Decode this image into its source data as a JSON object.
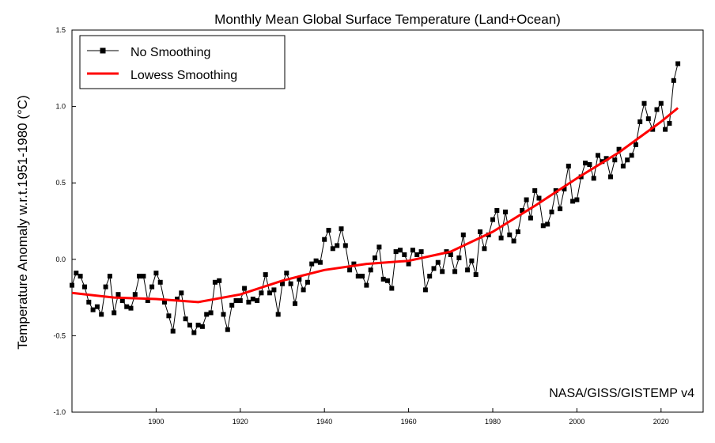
{
  "chart_data": {
    "type": "line",
    "title": "Monthly Mean Global Surface Temperature (Land+Ocean)",
    "ylabel": "Temperature Anomaly w.r.t.1951-1980 (°C)",
    "xlabel": "",
    "xlim": [
      1880,
      2030
    ],
    "ylim": [
      -1.0,
      1.5
    ],
    "x_ticks": [
      1900,
      1920,
      1940,
      1960,
      1980,
      2000,
      2020
    ],
    "x_tick_labels": [
      "1900",
      "1920",
      "1940",
      "1960",
      "1980",
      "2000",
      "2020"
    ],
    "y_ticks": [
      -1.0,
      -0.5,
      0.0,
      0.5,
      1.0,
      1.5
    ],
    "y_tick_labels": [
      "-1.0",
      "-0.5",
      "0.0",
      "0.5",
      "1.0",
      "1.5"
    ],
    "legend_position": "top-left",
    "annotation": "NASA/GISS/GISTEMP v4",
    "series": [
      {
        "name": "No Smoothing",
        "color": "#000000",
        "marker": "square",
        "x": [
          1880.0,
          1881.0,
          1882.0,
          1883.0,
          1884.0,
          1885.0,
          1886.0,
          1887.0,
          1888.0,
          1889.0,
          1890.0,
          1891.0,
          1892.0,
          1893.0,
          1894.0,
          1895.0,
          1896.0,
          1897.0,
          1898.0,
          1899.0,
          1900.0,
          1901.0,
          1902.0,
          1903.0,
          1904.0,
          1905.0,
          1906.0,
          1907.0,
          1908.0,
          1909.0,
          1910.0,
          1911.0,
          1912.0,
          1913.0,
          1914.0,
          1915.0,
          1916.0,
          1917.0,
          1918.0,
          1919.0,
          1920.0,
          1921.0,
          1922.0,
          1923.0,
          1924.0,
          1925.0,
          1926.0,
          1927.0,
          1928.0,
          1929.0,
          1930.0,
          1931.0,
          1932.0,
          1933.0,
          1934.0,
          1935.0,
          1936.0,
          1937.0,
          1938.0,
          1939.0,
          1940.0,
          1941.0,
          1942.0,
          1943.0,
          1944.0,
          1945.0,
          1946.0,
          1947.0,
          1948.0,
          1949.0,
          1950.0,
          1951.0,
          1952.0,
          1953.0,
          1954.0,
          1955.0,
          1956.0,
          1957.0,
          1958.0,
          1959.0,
          1960.0,
          1961.0,
          1962.0,
          1963.0,
          1964.0,
          1965.0,
          1966.0,
          1967.0,
          1968.0,
          1969.0,
          1970.0,
          1971.0,
          1972.0,
          1973.0,
          1974.0,
          1975.0,
          1976.0,
          1977.0,
          1978.0,
          1979.0,
          1980.0,
          1981.0,
          1982.0,
          1983.0,
          1984.0,
          1985.0,
          1986.0,
          1987.0,
          1988.0,
          1989.0,
          1990.0,
          1991.0,
          1992.0,
          1993.0,
          1994.0,
          1995.0,
          1996.0,
          1997.0,
          1998.0,
          1999.0,
          2000.0,
          2001.0,
          2002.0,
          2003.0,
          2004.0,
          2005.0,
          2006.0,
          2007.0,
          2008.0,
          2009.0,
          2010.0,
          2011.0,
          2012.0,
          2013.0,
          2014.0,
          2015.0,
          2016.0,
          2017.0,
          2018.0,
          2019.0,
          2020.0,
          2021.0,
          2022.0,
          2023.0,
          2024.0
        ],
        "values": [
          -0.17,
          -0.09,
          -0.11,
          -0.18,
          -0.28,
          -0.33,
          -0.31,
          -0.36,
          -0.18,
          -0.11,
          -0.35,
          -0.23,
          -0.27,
          -0.31,
          -0.32,
          -0.23,
          -0.11,
          -0.11,
          -0.27,
          -0.18,
          -0.09,
          -0.15,
          -0.28,
          -0.37,
          -0.47,
          -0.26,
          -0.22,
          -0.39,
          -0.43,
          -0.48,
          -0.43,
          -0.44,
          -0.36,
          -0.35,
          -0.15,
          -0.14,
          -0.36,
          -0.46,
          -0.3,
          -0.27,
          -0.27,
          -0.19,
          -0.28,
          -0.26,
          -0.27,
          -0.22,
          -0.1,
          -0.22,
          -0.2,
          -0.36,
          -0.16,
          -0.09,
          -0.16,
          -0.29,
          -0.13,
          -0.2,
          -0.15,
          -0.03,
          -0.01,
          -0.02,
          0.13,
          0.19,
          0.07,
          0.09,
          0.2,
          0.09,
          -0.07,
          -0.03,
          -0.11,
          -0.11,
          -0.17,
          -0.07,
          0.01,
          0.08,
          -0.13,
          -0.14,
          -0.19,
          0.05,
          0.06,
          0.03,
          -0.03,
          0.06,
          0.03,
          0.05,
          -0.2,
          -0.11,
          -0.06,
          -0.02,
          -0.08,
          0.05,
          0.03,
          -0.08,
          0.01,
          0.16,
          -0.07,
          -0.01,
          -0.1,
          0.18,
          0.07,
          0.16,
          0.26,
          0.32,
          0.14,
          0.31,
          0.16,
          0.12,
          0.18,
          0.32,
          0.39,
          0.27,
          0.45,
          0.4,
          0.22,
          0.23,
          0.31,
          0.45,
          0.33,
          0.46,
          0.61,
          0.38,
          0.39,
          0.54,
          0.63,
          0.62,
          0.53,
          0.68,
          0.64,
          0.66,
          0.54,
          0.65,
          0.72,
          0.61,
          0.65,
          0.68,
          0.75,
          0.9,
          1.02,
          0.92,
          0.85,
          0.98,
          1.02,
          0.85,
          0.89,
          1.17,
          1.28
        ]
      },
      {
        "name": "Lowess Smoothing",
        "color": "#ff0000",
        "x": [
          1880,
          1890,
          1900,
          1910,
          1920,
          1930,
          1940,
          1950,
          1960,
          1970,
          1980,
          1990,
          2000,
          2010,
          2020,
          2024
        ],
        "values": [
          -0.22,
          -0.25,
          -0.26,
          -0.28,
          -0.23,
          -0.14,
          -0.07,
          -0.03,
          -0.01,
          0.05,
          0.18,
          0.35,
          0.53,
          0.7,
          0.9,
          0.99
        ]
      }
    ]
  }
}
